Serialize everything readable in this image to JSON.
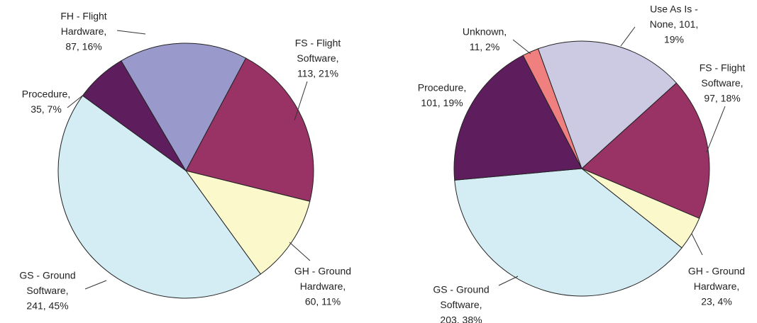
{
  "chart_data": [
    {
      "type": "pie",
      "labels": [
        [
          "FS - Flight",
          "Software,",
          "113, 21%"
        ],
        [
          "GH - Ground",
          "Hardware,",
          "60, 11%"
        ],
        [
          "GS - Ground",
          "Software,",
          "241, 45%"
        ],
        [
          "Procedure,",
          "35, 7%"
        ],
        [
          "FH - Flight",
          "Hardware,",
          "87, 16%"
        ]
      ],
      "values": [
        113,
        60,
        241,
        35,
        87
      ],
      "colors": [
        "#993366",
        "#fbf8cc",
        "#d4ecf3",
        "#5e1e5e",
        "#9999cc"
      ]
    },
    {
      "type": "pie",
      "labels": [
        [
          "Use As Is -",
          "None, 101,",
          "19%"
        ],
        [
          "FS - Flight",
          "Software,",
          "97, 18%"
        ],
        [
          "GH - Ground",
          "Hardware,",
          "23, 4%"
        ],
        [
          "GS - Ground",
          "Software,",
          "203, 38%"
        ],
        [
          "Procedure,",
          "101, 19%"
        ],
        [
          "Unknown,",
          "11, 2%"
        ]
      ],
      "values": [
        101,
        97,
        23,
        203,
        101,
        11
      ],
      "colors": [
        "#ccc9e3",
        "#993366",
        "#fbf8cc",
        "#d4ecf3",
        "#5e1e5e",
        "#f08080"
      ]
    }
  ]
}
